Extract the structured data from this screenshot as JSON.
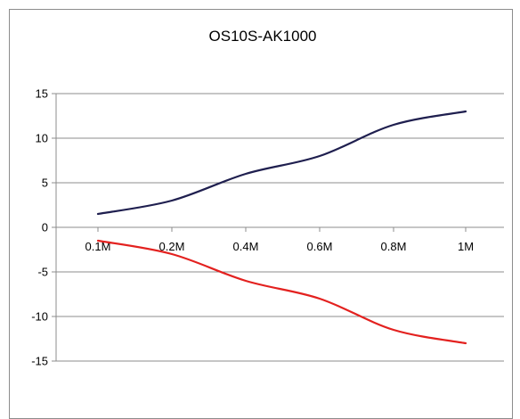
{
  "chart_data": {
    "type": "line",
    "title": "OS10S-AK1000",
    "categories": [
      "0.1M",
      "0.2M",
      "0.4M",
      "0.6M",
      "0.8M",
      "1M"
    ],
    "series": [
      {
        "values": [
          1.5,
          3.0,
          6.0,
          8.0,
          11.5,
          13.0
        ],
        "color": "#1f1f4f"
      },
      {
        "values": [
          -1.5,
          -3.0,
          -6.0,
          -8.0,
          -11.5,
          -13.0
        ],
        "color": "#e3211f"
      }
    ],
    "ylim": [
      -15,
      15
    ],
    "yticks": [
      "15",
      "10",
      "5",
      "0",
      "-5",
      "-10",
      "-15"
    ],
    "xlabel": "",
    "ylabel": "",
    "grid": true,
    "legend": "none"
  }
}
